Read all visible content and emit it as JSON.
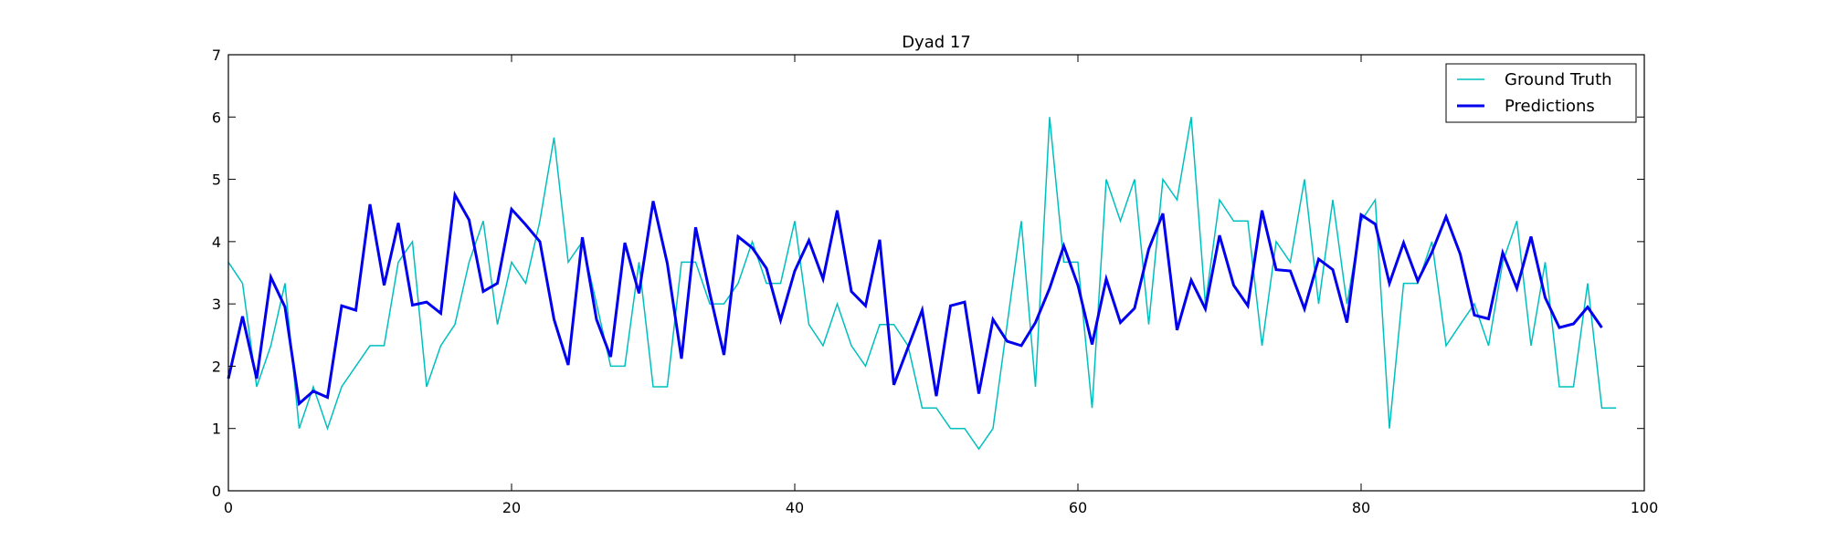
{
  "chart_data": {
    "type": "line",
    "title": "Dyad 17",
    "xlabel": "",
    "ylabel": "",
    "xlim": [
      0,
      100
    ],
    "ylim": [
      0,
      7
    ],
    "x_ticks": [
      0,
      20,
      40,
      60,
      80,
      100
    ],
    "y_ticks": [
      0,
      1,
      2,
      3,
      4,
      5,
      6,
      7
    ],
    "grid": false,
    "legend_position": "top-right",
    "series": [
      {
        "name": "Ground Truth",
        "color": "#00bfbf",
        "line_style": "thin",
        "x": [
          0,
          1,
          2,
          3,
          4,
          5,
          6,
          7,
          8,
          9,
          10,
          11,
          12,
          13,
          14,
          15,
          16,
          17,
          18,
          19,
          20,
          21,
          22,
          23,
          24,
          25,
          26,
          27,
          28,
          29,
          30,
          31,
          32,
          33,
          34,
          35,
          36,
          37,
          38,
          39,
          40,
          41,
          42,
          43,
          44,
          45,
          46,
          47,
          48,
          49,
          50,
          51,
          52,
          53,
          54,
          55,
          56,
          57,
          58,
          59,
          60,
          61,
          62,
          63,
          64,
          65,
          66,
          67,
          68,
          69,
          70,
          71,
          72,
          73,
          74,
          75,
          76,
          77,
          78,
          79,
          80,
          81,
          82,
          83,
          84,
          85,
          86,
          87,
          88,
          89,
          90,
          91,
          92,
          93,
          94,
          95,
          96,
          97,
          98
        ],
        "values": [
          3.67,
          3.33,
          1.67,
          2.33,
          3.33,
          1.0,
          1.67,
          1.0,
          1.67,
          2.0,
          2.33,
          2.33,
          3.67,
          4.0,
          1.67,
          2.33,
          2.67,
          3.67,
          4.33,
          2.67,
          3.67,
          3.33,
          4.33,
          5.67,
          3.67,
          4.0,
          3.0,
          2.0,
          2.0,
          3.67,
          1.67,
          1.67,
          3.67,
          3.67,
          3.0,
          3.0,
          3.33,
          4.0,
          3.33,
          3.33,
          4.33,
          2.67,
          2.33,
          3.0,
          2.33,
          2.0,
          2.67,
          2.67,
          2.33,
          1.33,
          1.33,
          1.0,
          1.0,
          0.67,
          1.0,
          2.67,
          4.33,
          1.67,
          6.0,
          3.67,
          3.67,
          1.33,
          5.0,
          4.33,
          5.0,
          2.67,
          5.0,
          4.67,
          6.0,
          3.0,
          4.67,
          4.33,
          4.33,
          2.33,
          4.0,
          3.67,
          5.0,
          3.0,
          4.67,
          3.0,
          4.33,
          4.67,
          1.0,
          3.33,
          3.33,
          4.0,
          2.33,
          2.67,
          3.0,
          2.33,
          3.67,
          4.33,
          2.33,
          3.67,
          1.67,
          1.67,
          3.33,
          1.33,
          1.33
        ]
      },
      {
        "name": "Predictions",
        "color": "#0000ee",
        "line_style": "thick",
        "x": [
          0,
          1,
          2,
          3,
          4,
          5,
          6,
          7,
          8,
          9,
          10,
          11,
          12,
          13,
          14,
          15,
          16,
          17,
          18,
          19,
          20,
          21,
          22,
          23,
          24,
          25,
          26,
          27,
          28,
          29,
          30,
          31,
          32,
          33,
          34,
          35,
          36,
          37,
          38,
          39,
          40,
          41,
          42,
          43,
          44,
          45,
          46,
          47,
          48,
          49,
          50,
          51,
          52,
          53,
          54,
          55,
          56,
          57,
          58,
          59,
          60,
          61,
          62,
          63,
          64,
          65,
          66,
          67,
          68,
          69,
          70,
          71,
          72,
          73,
          74,
          75,
          76,
          77,
          78,
          79,
          80,
          81,
          82,
          83,
          84,
          85,
          86,
          87,
          88,
          89,
          90,
          91,
          92,
          93,
          94,
          95,
          96,
          97
        ],
        "values": [
          1.8,
          2.8,
          1.8,
          3.43,
          2.95,
          1.4,
          1.6,
          1.5,
          2.97,
          2.9,
          4.6,
          3.3,
          4.3,
          2.98,
          3.03,
          2.85,
          4.75,
          4.35,
          3.2,
          3.33,
          4.52,
          4.27,
          4.0,
          2.75,
          2.02,
          4.07,
          2.75,
          2.15,
          3.98,
          3.17,
          4.65,
          3.65,
          2.12,
          4.23,
          3.17,
          2.18,
          4.08,
          3.9,
          3.57,
          2.74,
          3.53,
          4.02,
          3.4,
          4.5,
          3.2,
          2.97,
          4.03,
          1.7,
          2.3,
          2.9,
          1.52,
          2.97,
          3.03,
          1.56,
          2.75,
          2.4,
          2.33,
          2.7,
          3.25,
          3.93,
          3.3,
          2.35,
          3.4,
          2.7,
          2.93,
          3.88,
          4.45,
          2.58,
          3.38,
          2.92,
          4.1,
          3.3,
          2.97,
          4.5,
          3.55,
          3.53,
          2.92,
          3.72,
          3.55,
          2.7,
          4.43,
          4.28,
          3.33,
          3.98,
          3.37,
          3.83,
          4.4,
          3.8,
          2.82,
          2.76,
          3.82,
          3.25,
          4.08,
          3.1,
          2.62,
          2.68,
          2.95,
          2.62
        ]
      }
    ]
  }
}
